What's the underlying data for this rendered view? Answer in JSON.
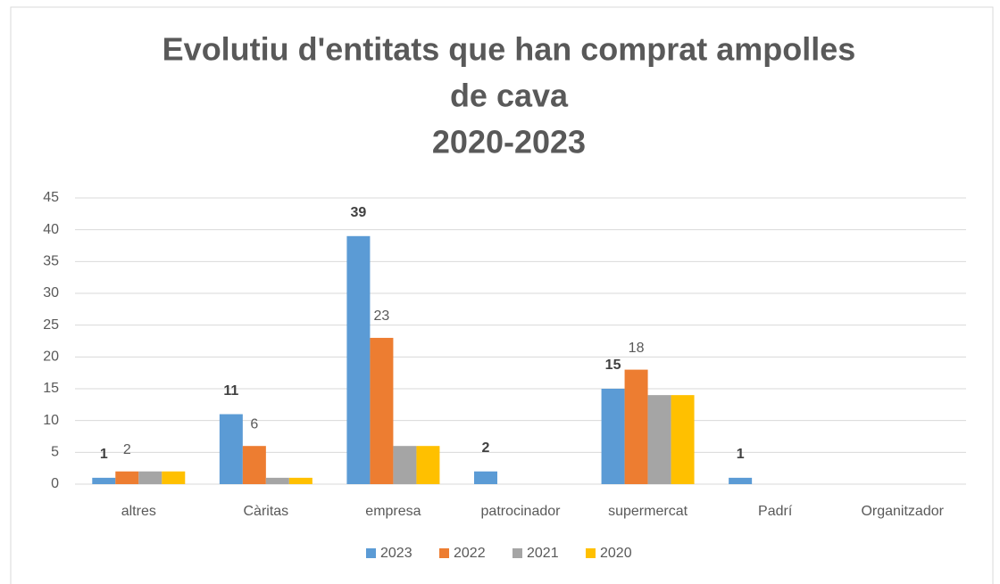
{
  "chart_data": {
    "type": "bar",
    "title": [
      "Evolutiu d'entitats que han comprat ampolles",
      "de cava",
      "2020-2023"
    ],
    "categories": [
      "altres",
      "Càritas",
      "empresa",
      "patrocinador",
      "supermercat",
      "Padrí",
      "Organitzador"
    ],
    "series": [
      {
        "name": "2023",
        "color": "#5b9bd5",
        "values": [
          1,
          11,
          39,
          2,
          15,
          1,
          null
        ],
        "show_labels": true,
        "label_bold": true
      },
      {
        "name": "2022",
        "color": "#ed7d31",
        "values": [
          2,
          6,
          23,
          null,
          18,
          null,
          null
        ],
        "show_labels": true,
        "label_bold": false
      },
      {
        "name": "2021",
        "color": "#a5a5a5",
        "values": [
          2,
          1,
          6,
          null,
          14,
          null,
          null
        ],
        "show_labels": false,
        "label_bold": false
      },
      {
        "name": "2020",
        "color": "#ffc000",
        "values": [
          2,
          1,
          6,
          null,
          14,
          null,
          null
        ],
        "show_labels": false,
        "label_bold": false
      }
    ],
    "ylim": [
      0,
      45
    ],
    "yticks": [
      0,
      5,
      10,
      15,
      20,
      25,
      30,
      35,
      40,
      45
    ],
    "grid": true,
    "legend": "bottom"
  }
}
